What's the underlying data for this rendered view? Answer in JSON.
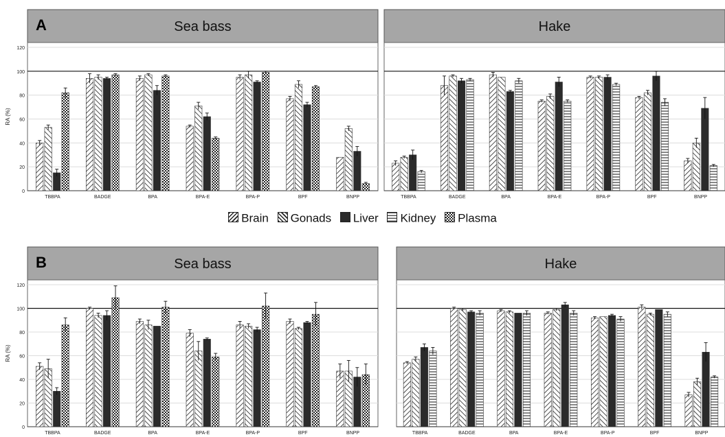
{
  "legend": {
    "brain": "Brain",
    "gonads": "Gonads",
    "liver": "Liver",
    "kidney": "Kidney",
    "plasma": "Plasma"
  },
  "chart_data": [
    {
      "type": "bar",
      "panel_letter": "A",
      "title": "Sea bass",
      "ylabel": "RA (%)",
      "ylim": [
        0,
        120
      ],
      "yticks": [
        0,
        20,
        40,
        60,
        80,
        100,
        120
      ],
      "categories": [
        "TBBPA",
        "BADGE",
        "BPA",
        "BPA-E",
        "BPA-P",
        "BPF",
        "BNPP"
      ],
      "series": [
        {
          "name": "Brain",
          "pattern": "brain",
          "values": [
            40,
            94,
            94,
            54,
            95,
            77,
            28
          ],
          "errors": [
            2,
            4,
            2,
            1,
            2,
            2,
            0
          ]
        },
        {
          "name": "Gonads",
          "pattern": "gonads",
          "values": [
            53,
            95,
            97,
            71,
            97,
            89,
            52
          ],
          "errors": [
            2,
            2,
            1,
            3,
            3,
            3,
            2
          ]
        },
        {
          "name": "Liver",
          "pattern": "liver",
          "values": [
            15,
            94,
            84,
            62,
            91,
            72,
            33
          ],
          "errors": [
            3,
            1,
            4,
            3,
            1,
            2,
            4
          ]
        },
        {
          "name": "Plasma",
          "pattern": "plasma",
          "values": [
            82,
            97,
            96,
            44,
            99,
            87,
            6
          ],
          "errors": [
            4,
            1,
            1,
            1,
            1,
            1,
            1
          ]
        }
      ]
    },
    {
      "type": "bar",
      "panel_letter": "",
      "title": "Hake",
      "ylabel": "",
      "ylim": [
        0,
        120
      ],
      "yticks": [
        0,
        20,
        40,
        60,
        80,
        100,
        120
      ],
      "categories": [
        "TBBPA",
        "BADGE",
        "BPA",
        "BPA-E",
        "BPA-P",
        "BPF",
        "BNPP"
      ],
      "series": [
        {
          "name": "Brain",
          "pattern": "brain",
          "values": [
            23,
            88,
            97,
            75,
            95,
            78,
            25
          ],
          "errors": [
            2,
            8,
            2,
            1,
            1,
            1,
            2
          ]
        },
        {
          "name": "Gonads",
          "pattern": "gonads",
          "values": [
            28,
            96,
            95,
            79,
            95,
            82,
            40
          ],
          "errors": [
            1,
            1,
            0,
            2,
            1,
            2,
            4
          ]
        },
        {
          "name": "Liver",
          "pattern": "liver",
          "values": [
            30,
            92,
            83,
            91,
            95,
            96,
            69
          ],
          "errors": [
            4,
            2,
            1,
            4,
            2,
            4,
            9
          ]
        },
        {
          "name": "Kidney",
          "pattern": "kidney",
          "values": [
            16,
            93,
            92,
            75,
            89,
            74,
            21
          ],
          "errors": [
            1,
            1,
            2,
            1,
            1,
            3,
            1
          ]
        }
      ]
    },
    {
      "type": "bar",
      "panel_letter": "B",
      "title": "Sea bass",
      "ylabel": "RA (%)",
      "ylim": [
        0,
        120
      ],
      "yticks": [
        0,
        20,
        40,
        60,
        80,
        100,
        120
      ],
      "categories": [
        "TBBPA",
        "BADGE",
        "BPA",
        "BPA-E",
        "BPA-P",
        "BPF",
        "BNPP"
      ],
      "series": [
        {
          "name": "Brain",
          "pattern": "brain",
          "values": [
            51,
            100,
            89,
            79,
            86,
            89,
            47
          ],
          "errors": [
            3,
            1,
            2,
            3,
            3,
            2,
            6
          ]
        },
        {
          "name": "Gonads",
          "pattern": "gonads",
          "values": [
            49,
            94,
            86,
            64,
            85,
            83,
            47
          ],
          "errors": [
            8,
            2,
            4,
            8,
            2,
            1,
            9
          ]
        },
        {
          "name": "Liver",
          "pattern": "liver",
          "values": [
            30,
            94,
            85,
            74,
            82,
            88,
            42
          ],
          "errors": [
            3,
            4,
            0,
            1,
            2,
            1,
            8
          ]
        },
        {
          "name": "Plasma",
          "pattern": "plasma",
          "values": [
            86,
            109,
            101,
            59,
            102,
            95,
            44
          ],
          "errors": [
            6,
            10,
            5,
            3,
            11,
            10,
            9
          ]
        }
      ]
    },
    {
      "type": "bar",
      "panel_letter": "",
      "title": "Hake",
      "ylabel": "",
      "ylim": [
        0,
        120
      ],
      "yticks": [
        0,
        20,
        40,
        60,
        80,
        100,
        120
      ],
      "categories": [
        "TBBPA",
        "BADGE",
        "BPA",
        "BPA-E",
        "BPA-P",
        "BPF",
        "BNPP"
      ],
      "series": [
        {
          "name": "Brain",
          "pattern": "brain",
          "values": [
            54,
            100,
            98,
            96,
            92,
            101,
            27
          ],
          "errors": [
            1,
            1,
            1,
            1,
            1,
            2,
            2
          ]
        },
        {
          "name": "Gonads",
          "pattern": "gonads",
          "values": [
            57,
            99,
            97,
            99,
            93,
            95,
            38
          ],
          "errors": [
            2,
            1,
            1,
            1,
            0,
            1,
            3
          ]
        },
        {
          "name": "Liver",
          "pattern": "liver",
          "values": [
            67,
            97,
            96,
            103,
            94,
            99,
            63
          ],
          "errors": [
            3,
            1,
            0,
            2,
            1,
            0,
            8
          ]
        },
        {
          "name": "Kidney",
          "pattern": "kidney",
          "values": [
            64,
            96,
            96,
            96,
            91,
            95,
            42
          ],
          "errors": [
            3,
            2,
            2,
            2,
            2,
            2,
            1
          ]
        }
      ]
    }
  ]
}
